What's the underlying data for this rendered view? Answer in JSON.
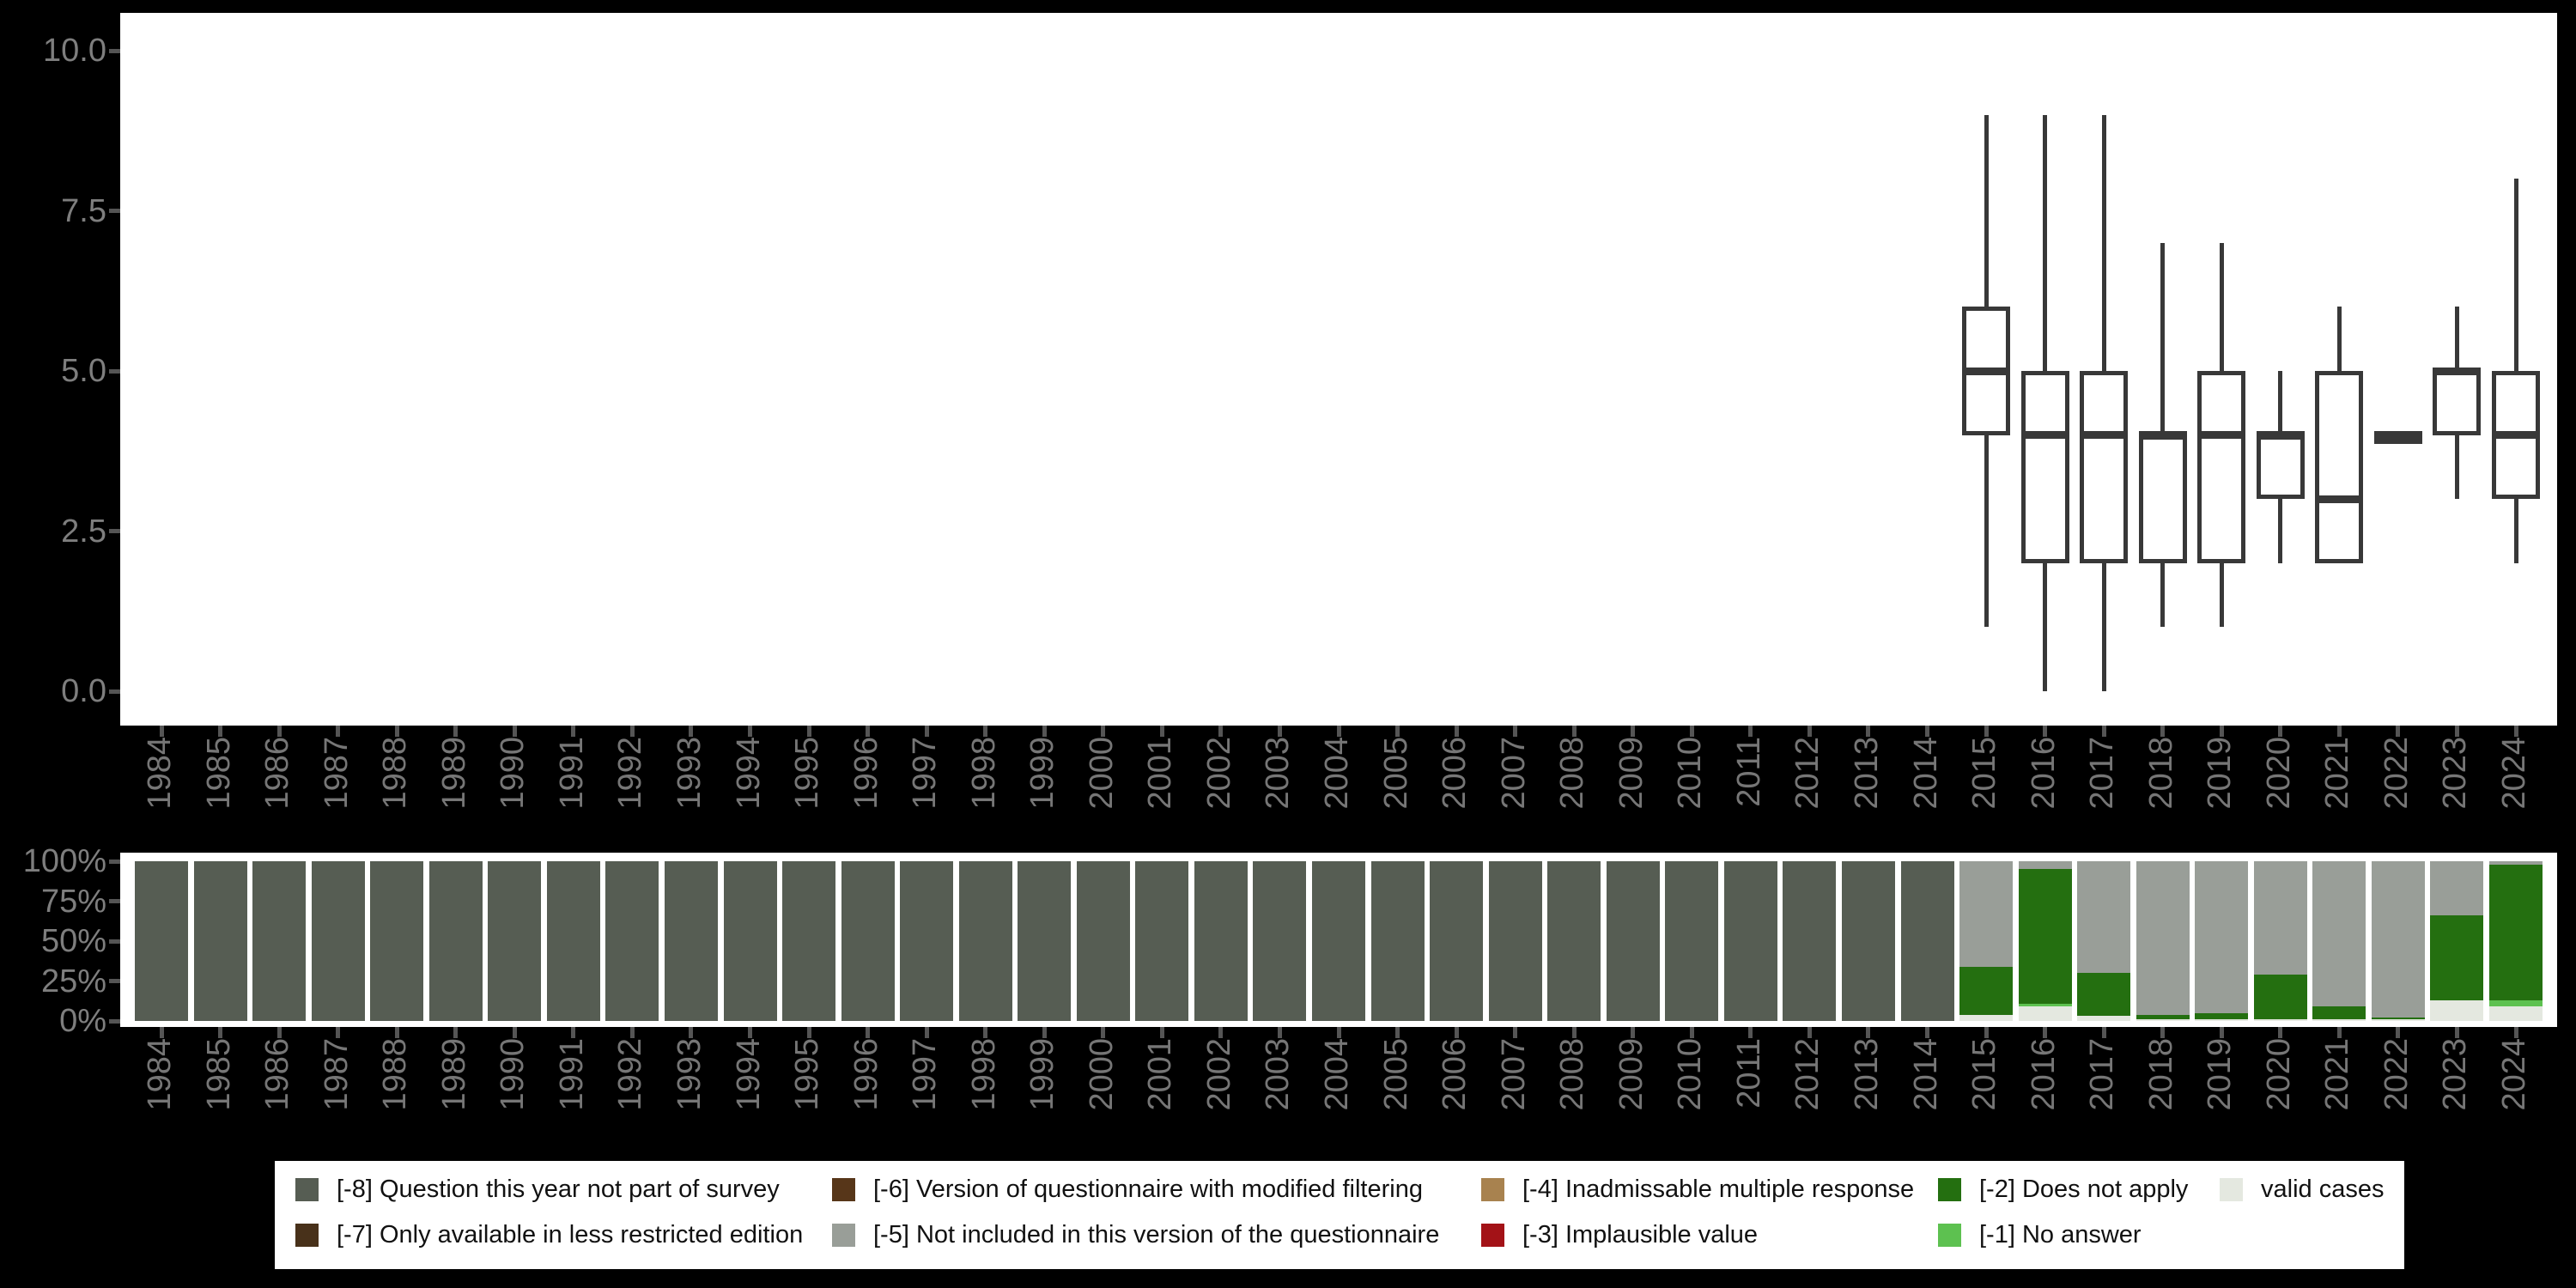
{
  "figure": {
    "background": "#000000",
    "panel_background": "#ffffff",
    "axis_tick_color": "#555555",
    "axis_label_color": "#7e7e7e",
    "box_stroke_color": "#383838"
  },
  "years": [
    "1984",
    "1985",
    "1986",
    "1987",
    "1988",
    "1989",
    "1990",
    "1991",
    "1992",
    "1993",
    "1994",
    "1995",
    "1996",
    "1997",
    "1998",
    "1999",
    "2000",
    "2001",
    "2002",
    "2003",
    "2004",
    "2005",
    "2006",
    "2007",
    "2008",
    "2009",
    "2010",
    "2011",
    "2012",
    "2013",
    "2014",
    "2015",
    "2016",
    "2017",
    "2018",
    "2019",
    "2020",
    "2021",
    "2022",
    "2023",
    "2024"
  ],
  "categories": {
    "-8": {
      "label": "[-8] Question this year not part of survey",
      "color": "#565d53"
    },
    "-7": {
      "label": "[-7] Only available in less restricted edition",
      "color": "#48311a"
    },
    "-6": {
      "label": "[-6] Version of questionnaire with modified filtering",
      "color": "#573619"
    },
    "-5": {
      "label": "[-5] Not included in this version of the questionnaire",
      "color": "#999e98"
    },
    "-4": {
      "label": "[-4] Inadmissable multiple response",
      "color": "#a8824f"
    },
    "-3": {
      "label": "[-3] Implausible value",
      "color": "#a31217"
    },
    "-2": {
      "label": "[-2] Does not apply",
      "color": "#246f10"
    },
    "-1": {
      "label": "[-1] No answer",
      "color": "#5dc150"
    },
    "valid": {
      "label": "valid cases",
      "color": "#e4e8e0"
    }
  },
  "legend": {
    "rows": [
      [
        "-8",
        "-6",
        "-4",
        "-2",
        "valid"
      ],
      [
        "-7",
        "-5",
        "-3",
        "-1"
      ]
    ]
  },
  "chart_data": [
    {
      "type": "boxplot",
      "title": "",
      "xlabel": "",
      "ylabel": "",
      "ylim": [
        0,
        10
      ],
      "grid": false,
      "y_ticks": [
        {
          "label": "10.0",
          "value": 10
        },
        {
          "label": "7.5",
          "value": 7.5
        },
        {
          "label": "5.0",
          "value": 5
        },
        {
          "label": "2.5",
          "value": 2.5
        },
        {
          "label": "0.0",
          "value": 0
        }
      ],
      "x_categories_note": "years 1984-2014 have no box (no valid cases plotted)",
      "boxes": [
        {
          "year": "2015",
          "min": 1,
          "q1": 4,
          "median": 5,
          "q3": 6,
          "max": 9
        },
        {
          "year": "2016",
          "min": 0,
          "q1": 2,
          "median": 4,
          "q3": 5,
          "max": 9
        },
        {
          "year": "2017",
          "min": 0,
          "q1": 2,
          "median": 4,
          "q3": 5,
          "max": 9
        },
        {
          "year": "2018",
          "min": 1,
          "q1": 2,
          "median": 4,
          "q3": 4,
          "max": 7
        },
        {
          "year": "2019",
          "min": 1,
          "q1": 2,
          "median": 4,
          "q3": 5,
          "max": 7
        },
        {
          "year": "2020",
          "min": 2,
          "q1": 3,
          "median": 4,
          "q3": 4,
          "max": 5
        },
        {
          "year": "2021",
          "min": 2,
          "q1": 2,
          "median": 3,
          "q3": 5,
          "max": 6
        },
        {
          "year": "2022",
          "min": 4,
          "q1": 4,
          "median": 4,
          "q3": 4,
          "max": 4
        },
        {
          "year": "2023",
          "min": 3,
          "q1": 4,
          "median": 5,
          "q3": 5,
          "max": 6
        },
        {
          "year": "2024",
          "min": 2,
          "q1": 3,
          "median": 4,
          "q3": 5,
          "max": 8
        }
      ]
    },
    {
      "type": "stacked_bar_percent",
      "title": "",
      "ylim": [
        0,
        100
      ],
      "y_ticks": [
        {
          "label": "100%",
          "value": 100
        },
        {
          "label": "75%",
          "value": 75
        },
        {
          "label": "50%",
          "value": 50
        },
        {
          "label": "25%",
          "value": 25
        },
        {
          "label": "0%",
          "value": 0
        }
      ],
      "segments_order": "bottom to top",
      "bars": [
        {
          "year": "1984",
          "segments": [
            {
              "key": "-8",
              "pct": 100
            }
          ]
        },
        {
          "year": "1985",
          "segments": [
            {
              "key": "-8",
              "pct": 100
            }
          ]
        },
        {
          "year": "1986",
          "segments": [
            {
              "key": "-8",
              "pct": 100
            }
          ]
        },
        {
          "year": "1987",
          "segments": [
            {
              "key": "-8",
              "pct": 100
            }
          ]
        },
        {
          "year": "1988",
          "segments": [
            {
              "key": "-8",
              "pct": 100
            }
          ]
        },
        {
          "year": "1989",
          "segments": [
            {
              "key": "-8",
              "pct": 100
            }
          ]
        },
        {
          "year": "1990",
          "segments": [
            {
              "key": "-8",
              "pct": 100
            }
          ]
        },
        {
          "year": "1991",
          "segments": [
            {
              "key": "-8",
              "pct": 100
            }
          ]
        },
        {
          "year": "1992",
          "segments": [
            {
              "key": "-8",
              "pct": 100
            }
          ]
        },
        {
          "year": "1993",
          "segments": [
            {
              "key": "-8",
              "pct": 100
            }
          ]
        },
        {
          "year": "1994",
          "segments": [
            {
              "key": "-8",
              "pct": 100
            }
          ]
        },
        {
          "year": "1995",
          "segments": [
            {
              "key": "-8",
              "pct": 100
            }
          ]
        },
        {
          "year": "1996",
          "segments": [
            {
              "key": "-8",
              "pct": 100
            }
          ]
        },
        {
          "year": "1997",
          "segments": [
            {
              "key": "-8",
              "pct": 100
            }
          ]
        },
        {
          "year": "1998",
          "segments": [
            {
              "key": "-8",
              "pct": 100
            }
          ]
        },
        {
          "year": "1999",
          "segments": [
            {
              "key": "-8",
              "pct": 100
            }
          ]
        },
        {
          "year": "2000",
          "segments": [
            {
              "key": "-8",
              "pct": 100
            }
          ]
        },
        {
          "year": "2001",
          "segments": [
            {
              "key": "-8",
              "pct": 100
            }
          ]
        },
        {
          "year": "2002",
          "segments": [
            {
              "key": "-8",
              "pct": 100
            }
          ]
        },
        {
          "year": "2003",
          "segments": [
            {
              "key": "-8",
              "pct": 100
            }
          ]
        },
        {
          "year": "2004",
          "segments": [
            {
              "key": "-8",
              "pct": 100
            }
          ]
        },
        {
          "year": "2005",
          "segments": [
            {
              "key": "-8",
              "pct": 100
            }
          ]
        },
        {
          "year": "2006",
          "segments": [
            {
              "key": "-8",
              "pct": 100
            }
          ]
        },
        {
          "year": "2007",
          "segments": [
            {
              "key": "-8",
              "pct": 100
            }
          ]
        },
        {
          "year": "2008",
          "segments": [
            {
              "key": "-8",
              "pct": 100
            }
          ]
        },
        {
          "year": "2009",
          "segments": [
            {
              "key": "-8",
              "pct": 100
            }
          ]
        },
        {
          "year": "2010",
          "segments": [
            {
              "key": "-8",
              "pct": 100
            }
          ]
        },
        {
          "year": "2011",
          "segments": [
            {
              "key": "-8",
              "pct": 100
            }
          ]
        },
        {
          "year": "2012",
          "segments": [
            {
              "key": "-8",
              "pct": 100
            }
          ]
        },
        {
          "year": "2013",
          "segments": [
            {
              "key": "-8",
              "pct": 100
            }
          ]
        },
        {
          "year": "2014",
          "segments": [
            {
              "key": "-8",
              "pct": 100
            }
          ]
        },
        {
          "year": "2015",
          "segments": [
            {
              "key": "valid",
              "pct": 4
            },
            {
              "key": "-2",
              "pct": 30
            },
            {
              "key": "-5",
              "pct": 66
            }
          ]
        },
        {
          "year": "2016",
          "segments": [
            {
              "key": "valid",
              "pct": 9
            },
            {
              "key": "-1",
              "pct": 2
            },
            {
              "key": "-2",
              "pct": 84
            },
            {
              "key": "-5",
              "pct": 5
            }
          ]
        },
        {
          "year": "2017",
          "segments": [
            {
              "key": "valid",
              "pct": 3
            },
            {
              "key": "-2",
              "pct": 27
            },
            {
              "key": "-5",
              "pct": 70
            }
          ]
        },
        {
          "year": "2018",
          "segments": [
            {
              "key": "valid",
              "pct": 1
            },
            {
              "key": "-2",
              "pct": 3
            },
            {
              "key": "-5",
              "pct": 96
            }
          ]
        },
        {
          "year": "2019",
          "segments": [
            {
              "key": "valid",
              "pct": 1
            },
            {
              "key": "-2",
              "pct": 4
            },
            {
              "key": "-5",
              "pct": 95
            }
          ]
        },
        {
          "year": "2020",
          "segments": [
            {
              "key": "valid",
              "pct": 1
            },
            {
              "key": "-2",
              "pct": 28
            },
            {
              "key": "-5",
              "pct": 71
            }
          ]
        },
        {
          "year": "2021",
          "segments": [
            {
              "key": "valid",
              "pct": 1
            },
            {
              "key": "-2",
              "pct": 8
            },
            {
              "key": "-5",
              "pct": 91
            }
          ]
        },
        {
          "year": "2022",
          "segments": [
            {
              "key": "valid",
              "pct": 1
            },
            {
              "key": "-2",
              "pct": 1
            },
            {
              "key": "-5",
              "pct": 98
            }
          ]
        },
        {
          "year": "2023",
          "segments": [
            {
              "key": "valid",
              "pct": 13
            },
            {
              "key": "-2",
              "pct": 53
            },
            {
              "key": "-5",
              "pct": 34
            }
          ]
        },
        {
          "year": "2024",
          "segments": [
            {
              "key": "valid",
              "pct": 9
            },
            {
              "key": "-1",
              "pct": 4
            },
            {
              "key": "-2",
              "pct": 85
            },
            {
              "key": "-5",
              "pct": 2
            }
          ]
        }
      ]
    }
  ]
}
